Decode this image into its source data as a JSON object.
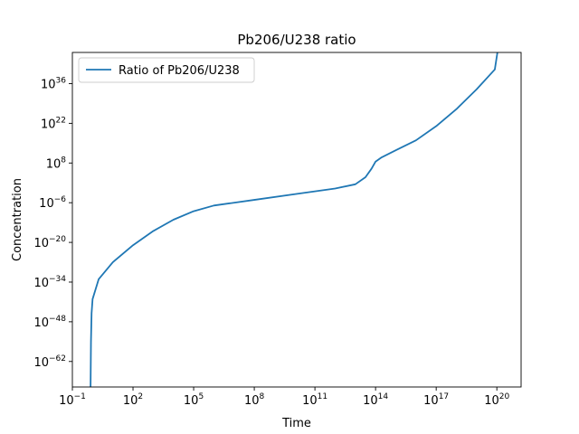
{
  "chart_data": {
    "type": "line",
    "title": "Pb206/U238 ratio",
    "xlabel": "Time",
    "ylabel": "Concentration",
    "x_scale": "log",
    "y_scale": "log",
    "xlim_exp": [
      -1,
      21.2
    ],
    "ylim_exp": [
      -71,
      47
    ],
    "x_ticks": [
      {
        "base": "10",
        "exp": "−1"
      },
      {
        "base": "10",
        "exp": "2"
      },
      {
        "base": "10",
        "exp": "5"
      },
      {
        "base": "10",
        "exp": "8"
      },
      {
        "base": "10",
        "exp": "11"
      },
      {
        "base": "10",
        "exp": "14"
      },
      {
        "base": "10",
        "exp": "17"
      },
      {
        "base": "10",
        "exp": "20"
      }
    ],
    "y_ticks": [
      {
        "base": "10",
        "exp": "−62"
      },
      {
        "base": "10",
        "exp": "−48"
      },
      {
        "base": "10",
        "exp": "−34"
      },
      {
        "base": "10",
        "exp": "−20"
      },
      {
        "base": "10",
        "exp": "−6"
      },
      {
        "base": "10",
        "exp": "8"
      },
      {
        "base": "10",
        "exp": "22"
      },
      {
        "base": "10",
        "exp": "36"
      }
    ],
    "grid": false,
    "legend_position": "top-left",
    "series": [
      {
        "name": "Ratio of Pb206/U238",
        "color": "#1f77b4",
        "x_log10": [
          -0.1,
          -0.08,
          -0.05,
          0.0,
          0.3,
          1.0,
          2.0,
          3.0,
          4.0,
          5.0,
          6.0,
          8.0,
          10.0,
          12.0,
          13.0,
          13.5,
          13.8,
          14.0,
          14.3,
          15.0,
          16.0,
          17.0,
          18.0,
          19.0,
          19.9,
          20.05
        ],
        "y_log10": [
          -71,
          -55,
          -45,
          -40,
          -33,
          -27,
          -21,
          -16,
          -12,
          -9,
          -7,
          -5,
          -3,
          -1,
          0.5,
          3,
          6,
          8.5,
          10,
          12.5,
          16,
          21,
          27,
          34,
          41,
          48
        ]
      }
    ]
  }
}
